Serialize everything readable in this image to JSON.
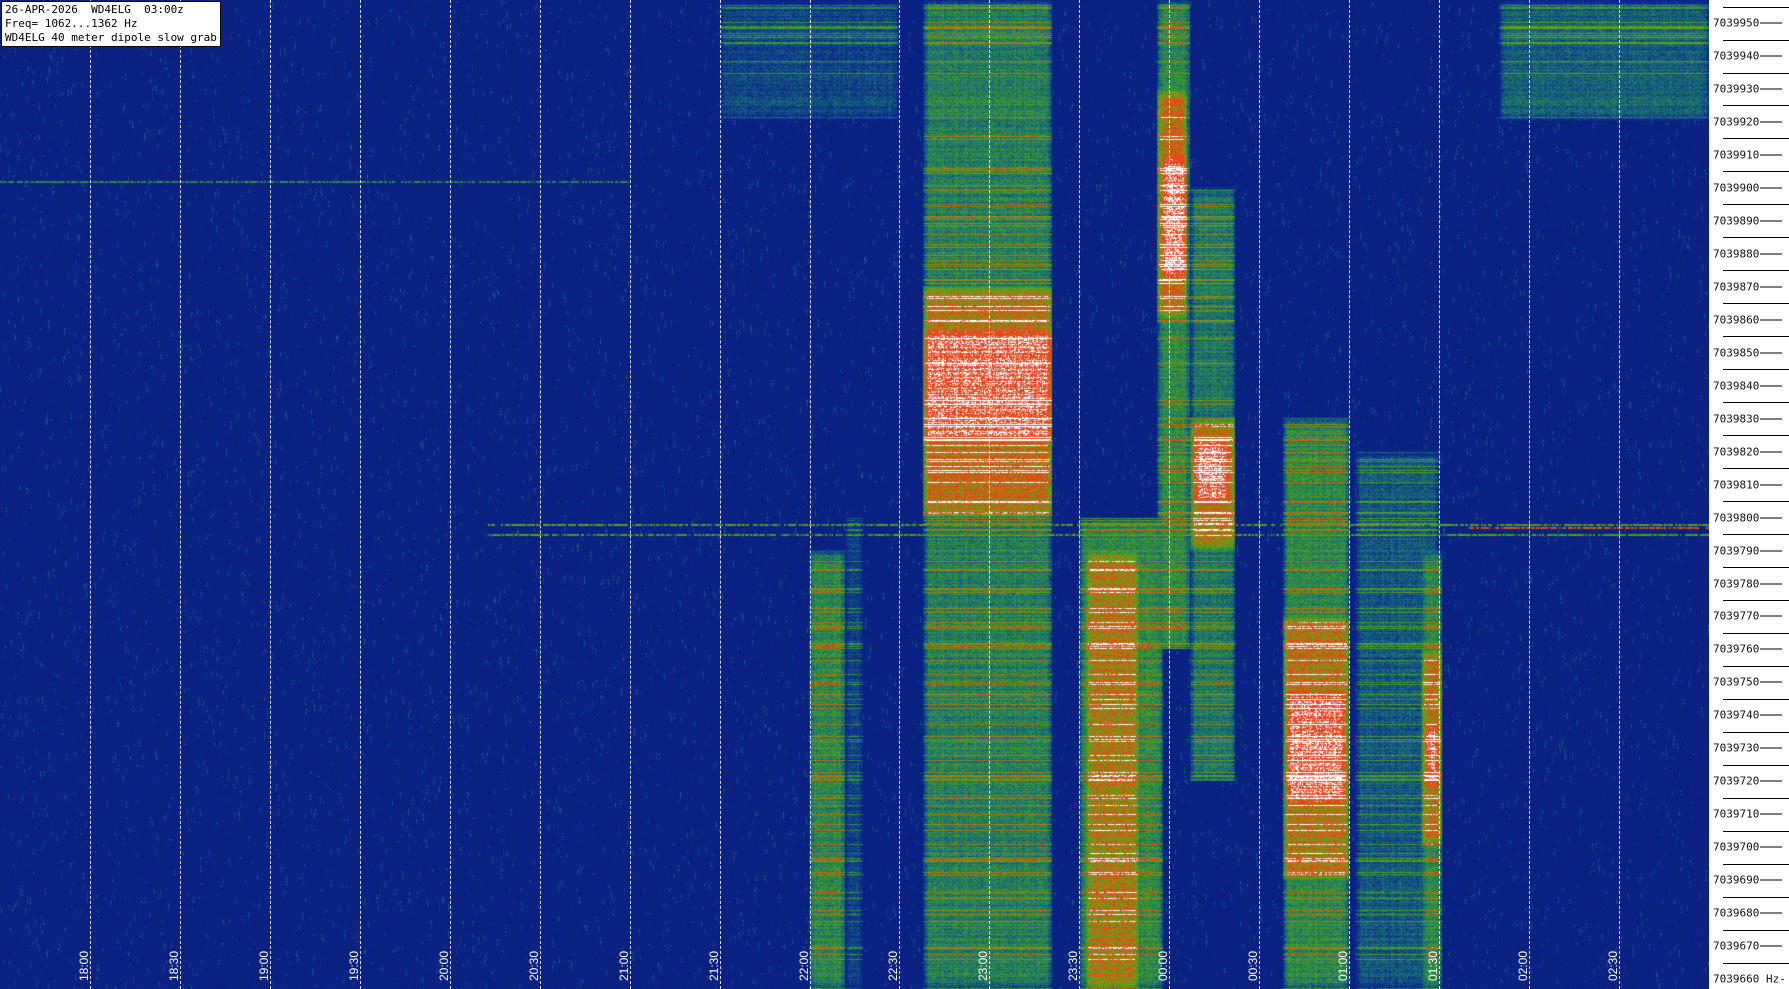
{
  "header": {
    "lines": [
      "26-APR-2026  WD4ELG  03:00z",
      "Freq= 1062...1362 Hz",
      "WD4ELG 40 meter dipole slow grab"
    ]
  },
  "colors": {
    "background": "#0a2080",
    "weak": "#3a9a2a",
    "strong": "#e8401a",
    "peak": "#ffffff"
  },
  "chart_data": {
    "type": "heatmap",
    "title": "",
    "x_range": [
      "17:30",
      "03:00"
    ],
    "y_range": [
      7039657,
      7039957
    ],
    "y_unit": "Hz",
    "grid": "vertical dashed at each x tick",
    "x_ticks": [
      "18:00",
      "18:30",
      "19:00",
      "19:30",
      "20:00",
      "20:30",
      "21:00",
      "21:30",
      "22:00",
      "22:30",
      "23:00",
      "23:30",
      "00:00",
      "00:30",
      "01:00",
      "01:30",
      "02:00",
      "02:30"
    ],
    "y_ticks": [
      7039950,
      7039940,
      7039930,
      7039920,
      7039910,
      7039900,
      7039890,
      7039880,
      7039870,
      7039860,
      7039850,
      7039840,
      7039830,
      7039820,
      7039810,
      7039800,
      7039790,
      7039780,
      7039770,
      7039760,
      7039750,
      7039740,
      7039730,
      7039720,
      7039710,
      7039700,
      7039690,
      7039680,
      7039670,
      7039660
    ],
    "y_last_suffix": " Hz-",
    "signals": [
      {
        "t0": "22:00",
        "t1": "22:12",
        "f_hi": 7039790,
        "f_lo": 7039657,
        "level": 0.45
      },
      {
        "t0": "22:12",
        "t1": "22:18",
        "f_hi": 7039800,
        "f_lo": 7039657,
        "level": 0.3
      },
      {
        "t0": "22:38",
        "t1": "23:21",
        "f_hi": 7039957,
        "f_lo": 7039657,
        "level": 0.42
      },
      {
        "t0": "23:56",
        "t1": "00:07",
        "f_hi": 7039957,
        "f_lo": 7039760,
        "level": 0.45
      },
      {
        "t0": "00:07",
        "t1": "00:22",
        "f_hi": 7039900,
        "f_lo": 7039720,
        "level": 0.4
      },
      {
        "t0": "23:30",
        "t1": "23:58",
        "f_hi": 7039800,
        "f_lo": 7039657,
        "level": 0.45
      },
      {
        "t0": "00:38",
        "t1": "01:00",
        "f_hi": 7039830,
        "f_lo": 7039657,
        "level": 0.45
      },
      {
        "t0": "01:02",
        "t1": "01:30",
        "f_hi": 7039820,
        "f_lo": 7039657,
        "level": 0.33
      },
      {
        "t0": "01:24",
        "t1": "01:31",
        "f_hi": 7039790,
        "f_lo": 7039657,
        "level": 0.45
      },
      {
        "t0": "01:50",
        "t1": "03:00",
        "f_hi": 7039957,
        "f_lo": 7039920,
        "level": 0.35
      },
      {
        "t0": "21:30",
        "t1": "22:30",
        "f_hi": 7039957,
        "f_lo": 7039920,
        "level": 0.3
      },
      {
        "t0": "22:38",
        "t1": "23:21",
        "f_hi": 7039870,
        "f_lo": 7039800,
        "level": 0.72
      },
      {
        "t0": "23:56",
        "t1": "00:06",
        "f_hi": 7039930,
        "f_lo": 7039860,
        "level": 0.72
      },
      {
        "t0": "00:07",
        "t1": "00:22",
        "f_hi": 7039830,
        "f_lo": 7039790,
        "level": 0.7
      },
      {
        "t0": "23:32",
        "t1": "23:50",
        "f_hi": 7039790,
        "f_lo": 7039657,
        "level": 0.68
      },
      {
        "t0": "00:38",
        "t1": "01:00",
        "f_hi": 7039770,
        "f_lo": 7039690,
        "level": 0.7
      },
      {
        "t0": "01:24",
        "t1": "01:31",
        "f_hi": 7039760,
        "f_lo": 7039700,
        "level": 0.7
      },
      {
        "t0": "22:38",
        "t1": "23:21",
        "f_hi": 7039858,
        "f_lo": 7039822,
        "level": 0.95
      },
      {
        "t0": "23:57",
        "t1": "00:06",
        "f_hi": 7039910,
        "f_lo": 7039872,
        "level": 0.95
      },
      {
        "t0": "00:08",
        "t1": "00:20",
        "f_hi": 7039825,
        "f_lo": 7039803,
        "level": 0.95
      },
      {
        "t0": "00:39",
        "t1": "00:59",
        "f_hi": 7039748,
        "f_lo": 7039712,
        "level": 0.95
      },
      {
        "t0": "01:25",
        "t1": "01:30",
        "f_hi": 7039738,
        "f_lo": 7039718,
        "level": 0.95
      }
    ],
    "carriers": [
      {
        "t0": "17:30",
        "t1": "21:00",
        "f": 7039902,
        "level": 0.4
      },
      {
        "t0": "20:13",
        "t1": "03:00",
        "f": 7039798,
        "level": 0.5
      },
      {
        "t0": "20:13",
        "t1": "03:00",
        "f": 7039795,
        "level": 0.48
      },
      {
        "t0": "01:40",
        "t1": "03:00",
        "f": 7039797,
        "level": 0.72
      }
    ]
  }
}
